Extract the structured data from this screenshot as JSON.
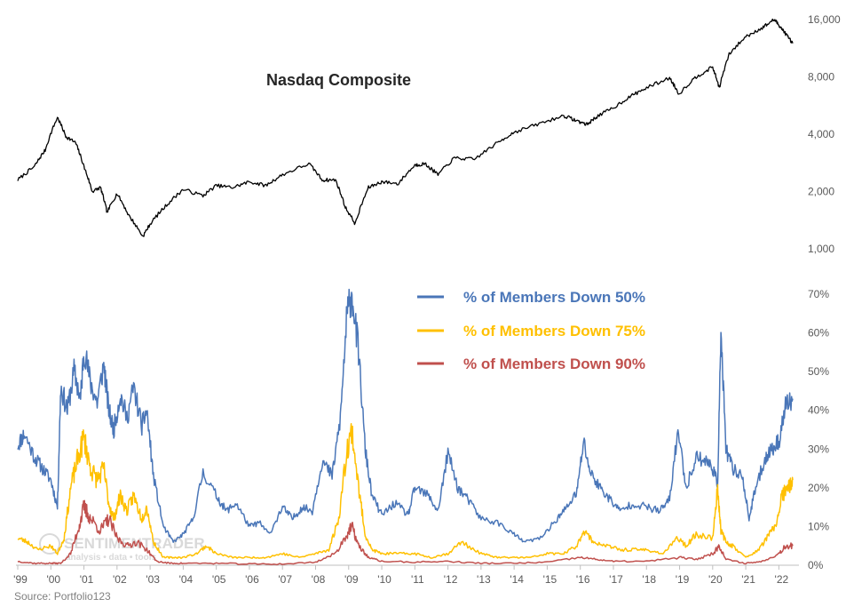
{
  "chart_data": [
    {
      "type": "line",
      "title": "Nasdaq Composite",
      "scale": "log",
      "y_ticks": [
        "1,000",
        "2,000",
        "4,000",
        "8,000",
        "16,000"
      ],
      "y_tick_values": [
        1000,
        2000,
        4000,
        8000,
        16000
      ],
      "ylim": [
        1000,
        16000
      ],
      "x": [
        1999.0,
        1999.5,
        1999.83,
        2000.2,
        2000.45,
        2000.75,
        2001.0,
        2001.25,
        2001.5,
        2001.7,
        2002.0,
        2002.35,
        2002.78,
        2003.0,
        2003.5,
        2004.0,
        2004.6,
        2005.0,
        2005.5,
        2006.0,
        2006.5,
        2007.0,
        2007.8,
        2008.2,
        2008.6,
        2008.9,
        2009.2,
        2009.6,
        2010.0,
        2010.5,
        2011.0,
        2011.3,
        2011.7,
        2012.2,
        2012.8,
        2013.5,
        2014.0,
        2014.7,
        2015.5,
        2015.9,
        2016.2,
        2016.5,
        2017.0,
        2017.5,
        2018.0,
        2018.7,
        2018.98,
        2019.5,
        2020.0,
        2020.2,
        2020.5,
        2021.0,
        2021.5,
        2021.86,
        2022.0,
        2022.2,
        2022.42
      ],
      "series": [
        {
          "values": [
            2300,
            2700,
            3300,
            4900,
            3900,
            3600,
            2700,
            2000,
            2100,
            1550,
            1950,
            1500,
            1160,
            1350,
            1700,
            2050,
            1900,
            2150,
            2100,
            2250,
            2150,
            2450,
            2800,
            2300,
            2300,
            1650,
            1350,
            2100,
            2250,
            2200,
            2750,
            2800,
            2450,
            3000,
            2950,
            3600,
            4100,
            4500,
            5000,
            4700,
            4500,
            4950,
            5500,
            6300,
            7000,
            7900,
            6500,
            8000,
            9000,
            7000,
            10500,
            13000,
            14500,
            16000,
            15000,
            13500,
            12000
          ]
        }
      ]
    },
    {
      "type": "line",
      "y_ticks": [
        "0%",
        "10%",
        "20%",
        "30%",
        "40%",
        "50%",
        "60%",
        "70%"
      ],
      "y_tick_values": [
        0,
        10,
        20,
        30,
        40,
        50,
        60,
        70
      ],
      "ylim": [
        0,
        70
      ],
      "x_ticks": [
        "'99",
        "'00",
        "'01",
        "'02",
        "'03",
        "'04",
        "'05",
        "'06",
        "'07",
        "'08",
        "'09",
        "'10",
        "'11",
        "'12",
        "'13",
        "'14",
        "'15",
        "'16",
        "'17",
        "'18",
        "'19",
        "'20",
        "'21",
        "'22"
      ],
      "x_tick_values": [
        1999,
        2000,
        2001,
        2002,
        2003,
        2004,
        2005,
        2006,
        2007,
        2008,
        2009,
        2010,
        2011,
        2012,
        2013,
        2014,
        2015,
        2016,
        2017,
        2018,
        2019,
        2020,
        2021,
        2022
      ],
      "xlim": [
        1999,
        2022.5
      ],
      "series": [
        {
          "name": "% of Members Down 50%",
          "color": "#4a76b8",
          "x": [
            1999.0,
            1999.2,
            1999.5,
            1999.75,
            2000.0,
            2000.2,
            2000.3,
            2000.5,
            2000.7,
            2000.9,
            2001.0,
            2001.2,
            2001.4,
            2001.6,
            2001.75,
            2001.9,
            2002.1,
            2002.3,
            2002.5,
            2002.75,
            2002.9,
            2003.1,
            2003.4,
            2003.7,
            2004.0,
            2004.3,
            2004.6,
            2005.0,
            2005.3,
            2005.6,
            2006.0,
            2006.3,
            2006.6,
            2007.0,
            2007.3,
            2007.6,
            2007.9,
            2008.2,
            2008.5,
            2008.75,
            2008.95,
            2009.1,
            2009.3,
            2009.5,
            2009.7,
            2010.0,
            2010.4,
            2010.8,
            2011.0,
            2011.4,
            2011.7,
            2012.0,
            2012.3,
            2012.6,
            2013.0,
            2013.5,
            2014.0,
            2014.3,
            2014.8,
            2015.3,
            2015.6,
            2015.9,
            2016.1,
            2016.3,
            2016.6,
            2016.9,
            2017.2,
            2017.6,
            2018.0,
            2018.4,
            2018.7,
            2018.95,
            2019.2,
            2019.5,
            2019.8,
            2020.0,
            2020.15,
            2020.25,
            2020.4,
            2020.6,
            2020.9,
            2021.1,
            2021.3,
            2021.6,
            2021.8,
            2022.0,
            2022.2,
            2022.42
          ],
          "values": [
            31,
            34,
            28,
            25,
            22,
            15,
            46,
            40,
            50,
            43,
            56,
            47,
            42,
            52,
            40,
            35,
            44,
            38,
            46,
            36,
            40,
            23,
            10,
            6,
            8,
            12,
            24,
            18,
            14,
            16,
            10,
            11,
            8,
            15,
            12,
            15,
            14,
            27,
            23,
            38,
            65,
            70,
            55,
            30,
            18,
            13,
            16,
            13,
            20,
            18,
            14,
            29,
            20,
            17,
            12,
            11,
            8,
            6,
            7,
            12,
            15,
            19,
            32,
            24,
            20,
            17,
            14,
            16,
            15,
            14,
            17,
            35,
            20,
            28,
            27,
            25,
            21,
            60,
            30,
            25,
            23,
            12,
            20,
            28,
            30,
            32,
            41,
            43
          ]
        },
        {
          "name": "% of Members Down 75%",
          "color": "#ffc000",
          "x": [
            1999.0,
            1999.3,
            1999.6,
            2000.0,
            2000.2,
            2000.4,
            2000.6,
            2000.8,
            2001.0,
            2001.2,
            2001.4,
            2001.6,
            2001.75,
            2001.9,
            2002.1,
            2002.3,
            2002.5,
            2002.75,
            2002.9,
            2003.1,
            2003.4,
            2003.7,
            2004.0,
            2004.4,
            2004.7,
            2005.0,
            2005.5,
            2006.0,
            2006.5,
            2007.0,
            2007.5,
            2008.0,
            2008.4,
            2008.7,
            2008.95,
            2009.1,
            2009.3,
            2009.5,
            2009.7,
            2010.0,
            2010.5,
            2011.0,
            2011.5,
            2012.0,
            2012.4,
            2013.0,
            2013.5,
            2014.0,
            2014.5,
            2015.0,
            2015.5,
            2015.9,
            2016.1,
            2016.4,
            2016.8,
            2017.2,
            2017.6,
            2018.0,
            2018.5,
            2018.95,
            2019.2,
            2019.5,
            2020.0,
            2020.15,
            2020.25,
            2020.4,
            2020.6,
            2021.0,
            2021.4,
            2021.7,
            2021.9,
            2022.1,
            2022.3,
            2022.42
          ],
          "values": [
            7,
            6,
            4,
            5,
            3,
            7,
            20,
            27,
            33,
            25,
            22,
            25,
            16,
            12,
            18,
            14,
            18,
            12,
            15,
            6,
            2,
            2,
            2,
            3,
            5,
            3,
            2,
            2,
            2,
            3,
            2,
            3,
            4,
            12,
            30,
            35,
            20,
            8,
            4,
            3,
            3,
            3,
            2,
            3,
            6,
            3,
            2,
            2,
            2,
            3,
            3,
            5,
            9,
            6,
            5,
            4,
            4,
            4,
            3,
            7,
            5,
            8,
            7,
            20,
            9,
            6,
            5,
            2,
            4,
            8,
            10,
            18,
            20,
            22
          ]
        },
        {
          "name": "% of Members Down 90%",
          "color": "#c0504d",
          "x": [
            1999.0,
            1999.5,
            2000.0,
            2000.3,
            2000.6,
            2000.85,
            2001.0,
            2001.2,
            2001.5,
            2001.75,
            2002.0,
            2002.3,
            2002.6,
            2002.9,
            2003.2,
            2003.6,
            2004.0,
            2005.0,
            2006.0,
            2007.0,
            2008.0,
            2008.6,
            2008.95,
            2009.1,
            2009.3,
            2009.6,
            2010.0,
            2011.0,
            2012.0,
            2013.0,
            2014.0,
            2015.0,
            2016.0,
            2016.5,
            2017.0,
            2018.0,
            2019.0,
            2019.5,
            2020.0,
            2020.2,
            2020.4,
            2021.0,
            2021.5,
            2022.0,
            2022.2,
            2022.42
          ],
          "values": [
            1,
            0.5,
            0.5,
            0.5,
            3,
            10,
            15,
            12,
            9,
            12,
            7,
            5,
            6,
            4,
            1,
            0.5,
            0.5,
            0.5,
            0.3,
            0.3,
            0.8,
            3,
            8,
            10,
            5,
            2,
            1,
            0.8,
            1,
            0.5,
            0.5,
            0.8,
            2,
            1.5,
            1,
            1,
            2,
            1.5,
            3,
            5,
            1.5,
            0.5,
            1,
            3,
            5,
            5
          ]
        }
      ],
      "legend": "upper-center"
    }
  ],
  "watermark": {
    "brand": "SENTIMENTRADER",
    "tagline": "analysis • data • tools"
  },
  "source": "Source: Portfolio123"
}
